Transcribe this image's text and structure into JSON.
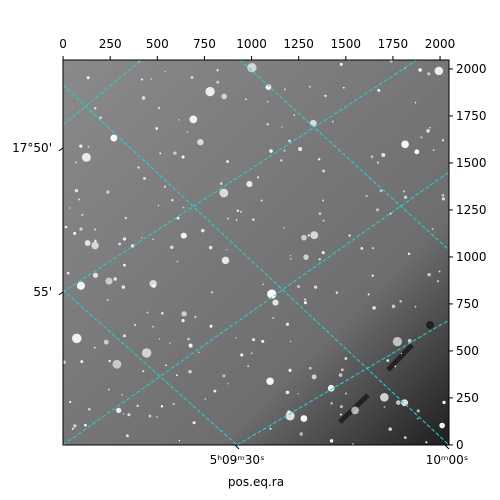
{
  "chart_data": {
    "type": "image",
    "xlabel": "pos.eq.ra",
    "xlim": [
      -0.5,
      2047.5
    ],
    "ylim": [
      -0.5,
      2047.5
    ],
    "xticks": [
      0,
      250,
      500,
      750,
      1000,
      1250,
      1500,
      1750,
      2000
    ],
    "yticks": [
      0,
      250,
      500,
      750,
      1000,
      1250,
      1500,
      1750,
      2000
    ],
    "ra_ticks": [
      {
        "value": 923,
        "label": "5ʰ09ᵐ30ˢ"
      },
      {
        "value": 2037,
        "label": "10ᵐ00ˢ"
      }
    ],
    "dec_ticks": [
      {
        "value": 1580,
        "label": "17°50'"
      },
      {
        "value": 814,
        "label": "55'"
      }
    ],
    "grid_color": "#1fd6d6"
  }
}
